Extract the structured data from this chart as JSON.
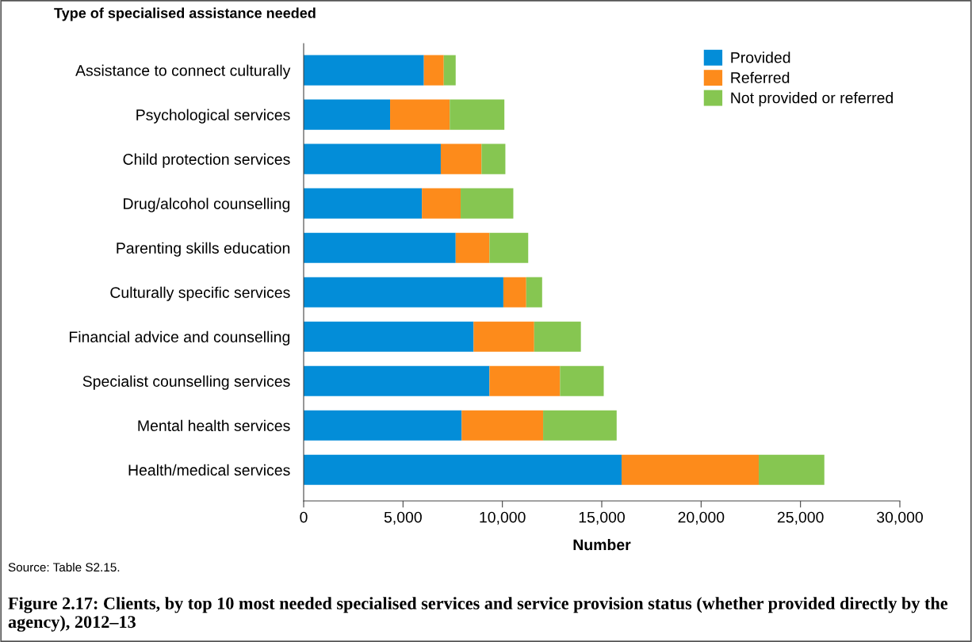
{
  "chart_data": {
    "type": "bar",
    "orientation": "horizontal",
    "stacked": true,
    "title": "Figure 2.17: Clients, by top 10 most needed specialised services and service provision status (whether provided directly by the agency), 2012–13",
    "ylabel": "Type of specialised assistance needed",
    "xlabel": "Number",
    "categories": [
      "Assistance to connect culturally",
      "Psychological services",
      "Child protection services",
      "Drug/alcohol counselling",
      "Parenting skills education",
      "Culturally specific services",
      "Financial advice and counselling",
      "Specialist counselling services",
      "Mental health services",
      "Health/medical services"
    ],
    "series": [
      {
        "name": "Provided",
        "color": "#038dd8",
        "values": [
          6050,
          4350,
          6900,
          5950,
          7650,
          10050,
          8550,
          9350,
          7950,
          16000
        ]
      },
      {
        "name": "Referred",
        "color": "#fd8b1b",
        "values": [
          1000,
          3000,
          2050,
          1950,
          1700,
          1150,
          3050,
          3550,
          4100,
          6900
        ]
      },
      {
        "name": "Not provided or referred",
        "color": "#86c651",
        "values": [
          600,
          2750,
          1200,
          2650,
          1950,
          800,
          2350,
          2200,
          3700,
          3300
        ]
      }
    ],
    "xlim": [
      0,
      30000
    ],
    "xticks": [
      {
        "value": 0,
        "label": "0"
      },
      {
        "value": 5000,
        "label": "5,000"
      },
      {
        "value": 10000,
        "label": "10,000"
      },
      {
        "value": 15000,
        "label": "15,000"
      },
      {
        "value": 20000,
        "label": "20,000"
      },
      {
        "value": 25000,
        "label": "25,000"
      },
      {
        "value": 30000,
        "label": "30,000"
      }
    ],
    "grid": false,
    "legend": "top right",
    "annotations": [
      "Source: Table S2.15."
    ]
  }
}
